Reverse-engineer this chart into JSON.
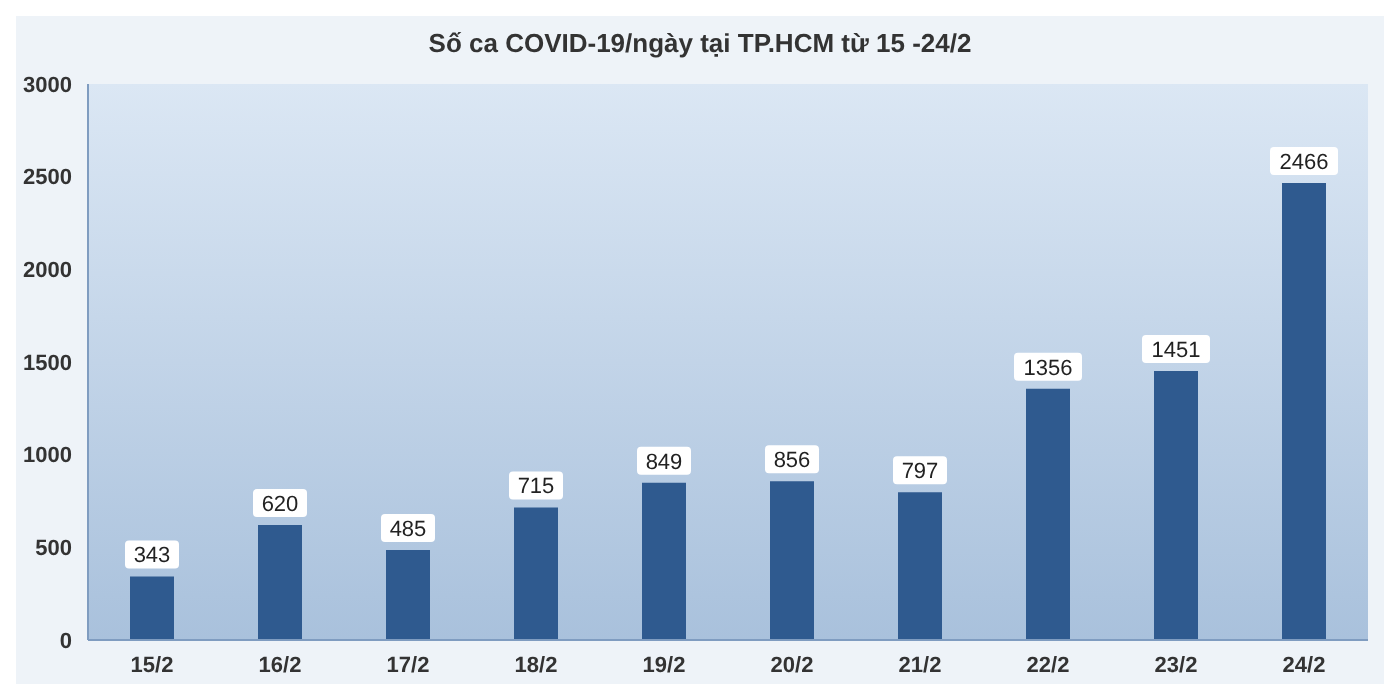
{
  "chart_data": {
    "type": "bar",
    "title": "Số ca COVID-19/ngày tại TP.HCM từ 15 -24/2",
    "categories": [
      "15/2",
      "16/2",
      "17/2",
      "18/2",
      "19/2",
      "20/2",
      "21/2",
      "22/2",
      "23/2",
      "24/2"
    ],
    "values": [
      343,
      620,
      485,
      715,
      849,
      856,
      797,
      1356,
      1451,
      2466
    ],
    "color": "#2f5a8f",
    "ylim": [
      0,
      3000
    ],
    "yticks": [
      0,
      500,
      1000,
      1500,
      2000,
      2500,
      3000
    ],
    "grid": false,
    "data_labels": true
  }
}
